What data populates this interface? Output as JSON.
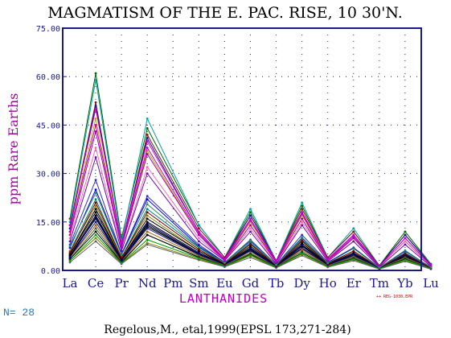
{
  "chart_data": {
    "type": "line",
    "title": "MAGMATISM OF THE E. PAC. RISE, 10 30'N.",
    "xlabel": "LANTHANIDES",
    "ylabel": "ppm Rare Earths",
    "categories": [
      "La",
      "Ce",
      "Pr",
      "Nd",
      "Pm",
      "Sm",
      "Eu",
      "Gd",
      "Tb",
      "Dy",
      "Ho",
      "Er",
      "Tm",
      "Yb",
      "Lu"
    ],
    "ylim": [
      0,
      75
    ],
    "yticks": [
      "0.00",
      "15.00",
      "30.00",
      "45.00",
      "60.00",
      "75.00"
    ],
    "grid": "dotted",
    "series": [
      {
        "color": "#006400",
        "values": [
          16,
          61,
          10,
          44,
          null,
          14,
          4,
          18,
          3,
          20,
          4,
          12,
          1.5,
          12,
          2
        ]
      },
      {
        "color": "#00a0a0",
        "values": [
          15,
          59,
          9,
          47,
          null,
          14,
          4,
          19,
          3,
          21,
          4,
          13,
          1.5,
          11,
          2
        ]
      },
      {
        "color": "#7a1a1a",
        "values": [
          14,
          52,
          8,
          42,
          null,
          13,
          4,
          17,
          3,
          19,
          4,
          12,
          1.5,
          11,
          1.8
        ]
      },
      {
        "color": "#1a1a8c",
        "values": [
          13,
          51,
          8,
          41,
          null,
          12,
          3.5,
          17,
          3,
          18,
          3.5,
          11,
          1.4,
          11,
          1.7
        ]
      },
      {
        "color": "#d000d0",
        "values": [
          14,
          50,
          8,
          40,
          null,
          12,
          3.5,
          16,
          3,
          18,
          3.5,
          11,
          1.3,
          10,
          1.6
        ]
      },
      {
        "color": "#b0b000",
        "values": [
          12,
          47,
          7,
          37,
          null,
          11,
          3,
          15,
          2.5,
          17,
          3,
          10,
          1.2,
          9,
          1.5
        ]
      },
      {
        "color": "#a000a0",
        "values": [
          11,
          43,
          7,
          36,
          null,
          11,
          3,
          14,
          2.5,
          16,
          3,
          10,
          1.2,
          9,
          1.4
        ]
      },
      {
        "color": "#ff69b4",
        "values": [
          10,
          38,
          6,
          32,
          null,
          10,
          3,
          13,
          2.2,
          15,
          3,
          9,
          1.1,
          9,
          1.3
        ]
      },
      {
        "color": "#6a0dad",
        "values": [
          9,
          35,
          6,
          30,
          null,
          9,
          3,
          12,
          2,
          14,
          2.8,
          9,
          1,
          8,
          1.2
        ]
      },
      {
        "color": "#3030c0",
        "values": [
          8,
          28,
          5,
          23,
          null,
          8,
          2.5,
          9.5,
          1.8,
          11,
          2.5,
          7,
          0.9,
          6,
          1
        ]
      },
      {
        "color": "#0000ff",
        "values": [
          7,
          25,
          5,
          22,
          null,
          7.5,
          2.5,
          9,
          1.8,
          10,
          2.4,
          7,
          0.9,
          6,
          1
        ]
      },
      {
        "color": "#008080",
        "values": [
          6,
          22,
          4,
          19,
          null,
          7,
          2.2,
          8.5,
          1.6,
          9.5,
          2.2,
          6,
          0.8,
          5.5,
          0.9
        ]
      },
      {
        "color": "#808000",
        "values": [
          6,
          20,
          4,
          17,
          null,
          6,
          2,
          8,
          1.5,
          9,
          2,
          6,
          0.8,
          5,
          0.8
        ]
      },
      {
        "color": "#000000",
        "values": [
          5,
          19,
          3.5,
          16,
          null,
          6,
          2,
          7.5,
          1.4,
          8.5,
          1.9,
          5.5,
          0.8,
          5,
          0.8
        ]
      },
      {
        "color": "#000000",
        "values": [
          5,
          18,
          3.5,
          15,
          null,
          5.5,
          1.9,
          7,
          1.3,
          8,
          1.8,
          5,
          0.7,
          4.5,
          0.7
        ]
      },
      {
        "color": "#000000",
        "values": [
          4.5,
          17,
          3.2,
          14,
          null,
          5,
          1.8,
          6.5,
          1.2,
          7.5,
          1.7,
          5,
          0.7,
          4.5,
          0.7
        ]
      },
      {
        "color": "#000000",
        "values": [
          4.5,
          16,
          3,
          13.5,
          null,
          5,
          1.7,
          6.2,
          1.2,
          7,
          1.6,
          4.7,
          0.7,
          4.2,
          0.6
        ]
      },
      {
        "color": "#1a1a8c",
        "values": [
          4,
          15,
          3,
          13,
          null,
          4.8,
          1.6,
          6,
          1.1,
          6.8,
          1.5,
          4.5,
          0.6,
          4,
          0.6
        ]
      },
      {
        "color": "#a06000",
        "values": [
          4,
          14,
          2.8,
          12,
          null,
          4.5,
          1.5,
          5.5,
          1,
          6.5,
          1.4,
          4.2,
          0.6,
          4,
          0.6
        ]
      },
      {
        "color": "#406040",
        "values": [
          3.5,
          13,
          2.6,
          11,
          null,
          4.2,
          1.4,
          5.2,
          1,
          6,
          1.3,
          4,
          0.6,
          3.8,
          0.5
        ]
      },
      {
        "color": "#000000",
        "values": [
          3.5,
          12,
          2.5,
          11,
          null,
          4,
          1.3,
          5,
          0.9,
          5.5,
          1.2,
          3.7,
          0.5,
          3.5,
          0.5
        ]
      },
      {
        "color": "#808000",
        "values": [
          3,
          10,
          2.2,
          8.5,
          null,
          3.5,
          1.2,
          4.5,
          0.8,
          5,
          1.1,
          3.3,
          0.5,
          3,
          0.4
        ]
      },
      {
        "color": "#00a000",
        "values": [
          3,
          11,
          2.3,
          9.5,
          null,
          3.8,
          1.3,
          4.8,
          0.9,
          5.3,
          1.2,
          3.5,
          0.5,
          3.3,
          0.5
        ]
      },
      {
        "color": "#606060",
        "values": [
          2.5,
          9,
          2,
          8,
          null,
          3.2,
          1.1,
          4,
          0.8,
          4.6,
          1,
          3,
          0.4,
          2.8,
          0.4
        ]
      },
      {
        "color": "#000080",
        "values": [
          4,
          16.5,
          3,
          14.5,
          null,
          5.2,
          1.8,
          6.8,
          1.25,
          7.8,
          1.7,
          5.2,
          0.7,
          4.8,
          0.7
        ]
      },
      {
        "color": "#800000",
        "values": [
          5.5,
          21,
          4,
          18,
          null,
          6.5,
          2.1,
          8.2,
          1.5,
          9.2,
          2.1,
          6,
          0.8,
          5.2,
          0.8
        ]
      },
      {
        "color": "#c000c0",
        "values": [
          12,
          45,
          7.5,
          38,
          null,
          11.5,
          3.2,
          15.5,
          2.7,
          17.5,
          3.2,
          10.5,
          1.25,
          10,
          1.5
        ]
      },
      {
        "color": "#2e8b57",
        "values": [
          7.5,
          24,
          4.8,
          20.5,
          null,
          7.2,
          2.4,
          9.2,
          1.7,
          10.2,
          2.3,
          6.8,
          0.85,
          6.2,
          0.9
        ]
      }
    ]
  },
  "count_label": "N= 28",
  "credit": "Regelous,M., etal,1999(EPSL 173,271-284)",
  "file_note": "++ REG-1030.EPR"
}
